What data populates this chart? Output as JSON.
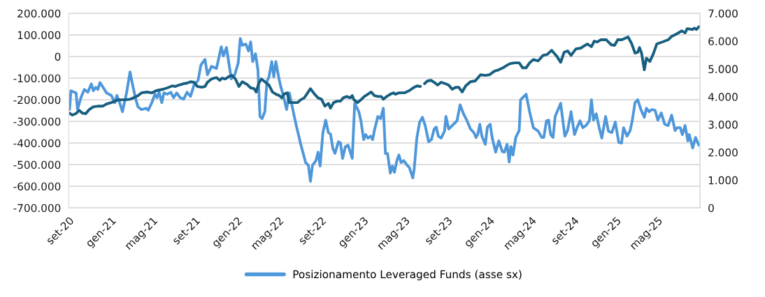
{
  "chart_data": {
    "type": "line",
    "xlim": [
      "2020-09-01",
      "2025-09-01"
    ],
    "xticks": [
      {
        "value": "2020-09-01",
        "label": "set-20"
      },
      {
        "value": "2021-01-01",
        "label": "gen-21"
      },
      {
        "value": "2021-05-01",
        "label": "mag-21"
      },
      {
        "value": "2021-09-01",
        "label": "set-21"
      },
      {
        "value": "2022-01-01",
        "label": "gen-22"
      },
      {
        "value": "2022-05-01",
        "label": "mag-22"
      },
      {
        "value": "2022-09-01",
        "label": "set-22"
      },
      {
        "value": "2023-01-01",
        "label": "gen-23"
      },
      {
        "value": "2023-05-01",
        "label": "mag-23"
      },
      {
        "value": "2023-09-01",
        "label": "set-23"
      },
      {
        "value": "2024-01-01",
        "label": "gen-24"
      },
      {
        "value": "2024-05-01",
        "label": "mag-24"
      },
      {
        "value": "2024-09-01",
        "label": "set-24"
      },
      {
        "value": "2025-01-01",
        "label": "gen-25"
      },
      {
        "value": "2025-05-01",
        "label": "mag-25"
      }
    ],
    "ylim": [
      -700000,
      200000
    ],
    "yticks": [
      {
        "value": -700000,
        "label": "-700.000"
      },
      {
        "value": -600000,
        "label": "-600.000"
      },
      {
        "value": -500000,
        "label": "-500.000"
      },
      {
        "value": -400000,
        "label": "-400.000"
      },
      {
        "value": -300000,
        "label": "-300.000"
      },
      {
        "value": -200000,
        "label": "-200.000"
      },
      {
        "value": -100000,
        "label": "-100.000"
      },
      {
        "value": 0,
        "label": "0"
      },
      {
        "value": 100000,
        "label": "100.000"
      },
      {
        "value": 200000,
        "label": "200.000"
      }
    ],
    "y2lim": [
      0,
      7000
    ],
    "y2ticks": [
      0,
      {
        "value": 1000,
        "label": "1.000"
      },
      {
        "value": 2000,
        "label": "2.000"
      },
      {
        "value": 3000,
        "label": "3.000"
      },
      {
        "value": 4000,
        "label": "4.000"
      },
      {
        "value": 5000,
        "label": "5.000"
      },
      {
        "value": 6000,
        "label": "6.000"
      },
      {
        "value": 7000,
        "label": "7.000"
      }
    ],
    "grid": "y",
    "legend": "bottom",
    "marker": "none",
    "line_style": "solid",
    "series": [
      {
        "name": "Posizionamento Leveraged Funds (asse sx)",
        "color": "#4e97da",
        "axis": "y",
        "x": [
          "2020-09-03",
          "2020-09-07",
          "2020-09-17",
          "2020-09-22",
          "2020-09-26",
          "2020-10-06",
          "2020-10-16",
          "2020-10-26",
          "2020-11-05",
          "2020-11-11",
          "2020-11-18",
          "2020-11-24",
          "2020-11-30",
          "2020-12-09",
          "2020-12-19",
          "2021-01-02",
          "2021-01-12",
          "2021-01-18",
          "2021-01-26",
          "2021-02-03",
          "2021-02-15",
          "2021-02-25",
          "2021-03-05",
          "2021-03-14",
          "2021-03-20",
          "2021-03-30",
          "2021-04-13",
          "2021-04-19",
          "2021-04-29",
          "2021-05-08",
          "2021-05-14",
          "2021-05-20",
          "2021-05-28",
          "2021-06-03",
          "2021-06-13",
          "2021-06-23",
          "2021-07-01",
          "2021-07-10",
          "2021-07-20",
          "2021-07-30",
          "2021-08-09",
          "2021-08-19",
          "2021-08-29",
          "2021-09-10",
          "2021-09-18",
          "2021-09-30",
          "2021-10-07",
          "2021-10-19",
          "2021-11-02",
          "2021-11-16",
          "2021-11-22",
          "2021-12-01",
          "2021-12-15",
          "2021-12-25",
          "2022-01-04",
          "2022-01-10",
          "2022-01-16",
          "2022-01-26",
          "2022-02-03",
          "2022-02-09",
          "2022-02-15",
          "2022-02-23",
          "2022-03-02",
          "2022-03-08",
          "2022-03-14",
          "2022-03-22",
          "2022-03-28",
          "2022-04-03",
          "2022-04-11",
          "2022-04-17",
          "2022-04-23",
          "2022-05-01",
          "2022-05-06",
          "2022-05-16",
          "2022-05-24",
          "2022-06-01",
          "2022-06-11",
          "2022-06-21",
          "2022-07-04",
          "2022-07-18",
          "2022-07-26",
          "2022-08-01",
          "2022-08-07",
          "2022-08-17",
          "2022-08-23",
          "2022-08-29",
          "2022-09-06",
          "2022-09-14",
          "2022-09-22",
          "2022-09-28",
          "2022-10-05",
          "2022-10-11",
          "2022-10-21",
          "2022-10-27",
          "2022-11-02",
          "2022-11-10",
          "2022-11-18",
          "2022-11-30",
          "2022-12-07",
          "2022-12-19",
          "2022-12-25",
          "2023-01-02",
          "2023-01-08",
          "2023-01-14",
          "2023-01-22",
          "2023-01-28",
          "2023-02-02",
          "2023-02-12",
          "2023-02-20",
          "2023-02-28",
          "2023-03-06",
          "2023-03-12",
          "2023-03-20",
          "2023-03-26",
          "2023-04-01",
          "2023-04-08",
          "2023-04-14",
          "2023-04-20",
          "2023-04-28",
          "2023-05-08",
          "2023-05-14",
          "2023-05-24",
          "2023-05-28",
          "2023-06-05",
          "2023-06-13",
          "2023-06-21",
          "2023-06-29",
          "2023-07-09",
          "2023-07-17",
          "2023-07-25",
          "2023-07-31",
          "2023-08-06",
          "2023-08-14",
          "2023-08-24",
          "2023-08-28",
          "2023-09-05",
          "2023-09-15",
          "2023-09-29",
          "2023-10-08",
          "2023-10-18",
          "2023-10-28",
          "2023-11-07",
          "2023-11-17",
          "2023-11-23",
          "2023-11-28",
          "2023-12-04",
          "2023-12-10",
          "2023-12-20",
          "2023-12-26",
          "2024-01-03",
          "2024-01-09",
          "2024-01-19",
          "2024-01-28",
          "2024-02-07",
          "2024-02-13",
          "2024-02-21",
          "2024-02-27",
          "2024-03-03",
          "2024-03-09",
          "2024-03-17",
          "2024-03-27",
          "2024-03-31",
          "2024-04-06",
          "2024-04-16",
          "2024-04-26",
          "2024-05-07",
          "2024-05-21",
          "2024-05-31",
          "2024-06-06",
          "2024-06-14",
          "2024-06-20",
          "2024-06-26",
          "2024-07-03",
          "2024-07-09",
          "2024-07-25",
          "2024-08-06",
          "2024-08-14",
          "2024-08-24",
          "2024-09-03",
          "2024-09-11",
          "2024-09-19",
          "2024-09-27",
          "2024-10-06",
          "2024-10-16",
          "2024-10-22",
          "2024-10-28",
          "2024-11-05",
          "2024-11-13",
          "2024-11-21",
          "2024-12-02",
          "2024-12-10",
          "2024-12-20",
          "2024-12-30",
          "2025-01-09",
          "2025-01-17",
          "2025-01-23",
          "2025-02-02",
          "2025-02-11",
          "2025-02-17",
          "2025-02-25",
          "2025-03-05",
          "2025-03-14",
          "2025-03-24",
          "2025-03-30",
          "2025-04-07",
          "2025-04-14",
          "2025-04-24",
          "2025-05-02",
          "2025-05-12",
          "2025-05-22",
          "2025-06-01",
          "2025-06-11",
          "2025-06-21",
          "2025-06-27",
          "2025-07-06",
          "2025-07-12",
          "2025-07-20",
          "2025-07-28",
          "2025-08-01",
          "2025-08-11",
          "2025-08-19",
          "2025-08-29"
        ],
        "values": [
          -245000,
          -158000,
          -165000,
          -168000,
          -245000,
          -190000,
          -152000,
          -165000,
          -126000,
          -158000,
          -142000,
          -152000,
          -120000,
          -142000,
          -168000,
          -180000,
          -213000,
          -180000,
          -213000,
          -255000,
          -168000,
          -71000,
          -135000,
          -200000,
          -232000,
          -245000,
          -239000,
          -248000,
          -213000,
          -174000,
          -190000,
          -165000,
          -213000,
          -168000,
          -174000,
          -165000,
          -190000,
          -168000,
          -190000,
          -197000,
          -165000,
          -184000,
          -132000,
          -110000,
          -39000,
          -13000,
          -84000,
          -45000,
          -55000,
          45000,
          3000,
          42000,
          -103000,
          -84000,
          -29000,
          84000,
          52000,
          58000,
          26000,
          68000,
          -23000,
          13000,
          -61000,
          -277000,
          -287000,
          -255000,
          -116000,
          -94000,
          -23000,
          -94000,
          -23000,
          -94000,
          -132000,
          -190000,
          -245000,
          -168000,
          -245000,
          -319000,
          -406000,
          -490000,
          -503000,
          -577000,
          -503000,
          -481000,
          -442000,
          -506000,
          -352000,
          -294000,
          -352000,
          -358000,
          -426000,
          -448000,
          -394000,
          -400000,
          -471000,
          -416000,
          -410000,
          -471000,
          -216000,
          -255000,
          -297000,
          -384000,
          -361000,
          -377000,
          -368000,
          -384000,
          -342000,
          -277000,
          -287000,
          -239000,
          -448000,
          -448000,
          -539000,
          -506000,
          -535000,
          -481000,
          -455000,
          -490000,
          -481000,
          -503000,
          -513000,
          -561000,
          -523000,
          -374000,
          -303000,
          -281000,
          -319000,
          -394000,
          -384000,
          -335000,
          -326000,
          -368000,
          -377000,
          -345000,
          -277000,
          -335000,
          -319000,
          -297000,
          -223000,
          -265000,
          -297000,
          -335000,
          -352000,
          -374000,
          -361000,
          -313000,
          -368000,
          -406000,
          -326000,
          -313000,
          -377000,
          -442000,
          -390000,
          -439000,
          -442000,
          -406000,
          -487000,
          -416000,
          -455000,
          -374000,
          -342000,
          -200000,
          -190000,
          -174000,
          -255000,
          -329000,
          -345000,
          -374000,
          -374000,
          -297000,
          -294000,
          -361000,
          -374000,
          -277000,
          -216000,
          -368000,
          -342000,
          -255000,
          -361000,
          -326000,
          -297000,
          -329000,
          -319000,
          -297000,
          -200000,
          -294000,
          -265000,
          -326000,
          -377000,
          -277000,
          -345000,
          -352000,
          -303000,
          -397000,
          -400000,
          -329000,
          -368000,
          -342000,
          -297000,
          -213000,
          -200000,
          -245000,
          -281000,
          -239000,
          -255000,
          -245000,
          -248000,
          -294000,
          -261000,
          -313000,
          -319000,
          -271000,
          -342000,
          -329000,
          -329000,
          -361000,
          -319000,
          -390000,
          -361000,
          -423000,
          -374000,
          -410000
        ]
      },
      {
        "color": "#175f80",
        "axis": "y2",
        "x": [
          "2020-09-03",
          "2020-09-11",
          "2020-09-21",
          "2020-10-01",
          "2020-10-10",
          "2020-10-20",
          "2020-10-30",
          "2020-11-11",
          "2020-11-24",
          "2020-12-08",
          "2020-12-19",
          "2021-01-02",
          "2021-01-22",
          "2021-02-11",
          "2021-02-25",
          "2021-03-07",
          "2021-03-20",
          "2021-03-30",
          "2021-04-15",
          "2021-04-29",
          "2021-05-12",
          "2021-06-01",
          "2021-06-13",
          "2021-06-27",
          "2021-07-06",
          "2021-07-16",
          "2021-07-30",
          "2021-08-09",
          "2021-08-19",
          "2021-08-29",
          "2021-09-08",
          "2021-09-20",
          "2021-09-30",
          "2021-10-07",
          "2021-10-19",
          "2021-11-02",
          "2021-11-12",
          "2021-11-18",
          "2021-11-28",
          "2021-12-07",
          "2021-12-17",
          "2021-12-27",
          "2022-01-06",
          "2022-01-16",
          "2022-01-30",
          "2022-02-09",
          "2022-02-19",
          "2022-02-25",
          "2022-03-04",
          "2022-03-12",
          "2022-03-22",
          "2022-04-03",
          "2022-04-13",
          "2022-04-23",
          "2022-05-03",
          "2022-05-10",
          "2022-05-16",
          "2022-05-26",
          "2022-06-01",
          "2022-06-11",
          "2022-06-25",
          "2022-07-04",
          "2022-07-14",
          "2022-07-24",
          "2022-08-01",
          "2022-08-13",
          "2022-08-23",
          "2022-09-02",
          "2022-09-12",
          "2022-09-22",
          "2022-09-28",
          "2022-10-07",
          "2022-10-17",
          "2022-10-27",
          "2022-11-04",
          "2022-11-14",
          "2022-11-24",
          "2022-11-30",
          "2022-12-05",
          "2022-12-15",
          "2022-12-25",
          "2023-01-04",
          "2023-01-14",
          "2023-01-24",
          "2023-02-02",
          "2023-02-12",
          "2023-02-22",
          "2023-02-28",
          "2023-03-10",
          "2023-03-20",
          "2023-03-30",
          "2023-04-04",
          "2023-04-14",
          "2023-04-30",
          "2023-05-14",
          "2023-05-28",
          "2023-06-05",
          "2023-06-15",
          "2023-06-22",
          "2023-06-27",
          "2023-07-06",
          "2023-07-16",
          "2023-07-25",
          "2023-08-04",
          "2023-08-14",
          "2023-08-26",
          "2023-09-05",
          "2023-09-15",
          "2023-09-25",
          "2023-10-04",
          "2023-10-14",
          "2023-10-24",
          "2023-11-07",
          "2023-11-21",
          "2023-12-06",
          "2023-12-20",
          "2024-01-01",
          "2024-01-15",
          "2024-01-28",
          "2024-02-09",
          "2024-02-19",
          "2024-02-29",
          "2024-03-13",
          "2024-03-27",
          "2024-04-06",
          "2024-04-16",
          "2024-04-26",
          "2024-05-07",
          "2024-05-21",
          "2024-06-04",
          "2024-06-16",
          "2024-06-29",
          "2024-07-13",
          "2024-07-25",
          "2024-08-04",
          "2024-08-14",
          "2024-08-24",
          "2024-09-07",
          "2024-09-21",
          "2024-09-30",
          "2024-10-10",
          "2024-10-22",
          "2024-10-30",
          "2024-11-08",
          "2024-11-18",
          "2024-12-04",
          "2024-12-18",
          "2024-12-28",
          "2025-01-06",
          "2025-01-18",
          "2025-02-05",
          "2025-02-15",
          "2025-02-25",
          "2025-03-05",
          "2025-03-10",
          "2025-03-16",
          "2025-03-24",
          "2025-03-30",
          "2025-04-09",
          "2025-04-19",
          "2025-04-29",
          "2025-05-15",
          "2025-06-01",
          "2025-06-11",
          "2025-06-27",
          "2025-07-10",
          "2025-07-20",
          "2025-07-26",
          "2025-08-10",
          "2025-08-16",
          "2025-08-22",
          "2025-08-29"
        ],
        "values": [
          3410,
          3340,
          3390,
          3510,
          3410,
          3390,
          3540,
          3640,
          3660,
          3660,
          3740,
          3790,
          3890,
          3890,
          3910,
          3960,
          4040,
          4140,
          4170,
          4140,
          4220,
          4270,
          4320,
          4390,
          4370,
          4420,
          4470,
          4490,
          4540,
          4520,
          4370,
          4340,
          4370,
          4520,
          4640,
          4690,
          4590,
          4670,
          4640,
          4720,
          4770,
          4640,
          4370,
          4540,
          4440,
          4320,
          4290,
          4170,
          4470,
          4640,
          4540,
          4420,
          4170,
          4090,
          4040,
          3960,
          4090,
          4140,
          3790,
          3790,
          3790,
          3890,
          3960,
          4140,
          4290,
          4090,
          3960,
          3910,
          3660,
          3760,
          3590,
          3790,
          3840,
          3840,
          3960,
          4010,
          3960,
          4040,
          3890,
          3790,
          3890,
          4010,
          4090,
          4170,
          4040,
          4010,
          4010,
          3910,
          4010,
          4090,
          4140,
          4090,
          4140,
          4140,
          4220,
          4340,
          4390,
          4370,
          null,
          4470,
          4570,
          4590,
          4520,
          4420,
          4520,
          4470,
          4420,
          4270,
          4340,
          4340,
          4170,
          4390,
          4540,
          4570,
          4790,
          4770,
          4790,
          4920,
          4970,
          5040,
          5120,
          5190,
          5220,
          5220,
          5040,
          5040,
          5220,
          5340,
          5290,
          5490,
          5520,
          5670,
          5470,
          5240,
          5600,
          5650,
          5490,
          5720,
          5750,
          5820,
          5900,
          5800,
          6000,
          5970,
          6050,
          6050,
          5870,
          5850,
          6050,
          6050,
          6150,
          5920,
          5570,
          5600,
          5770,
          5570,
          4970,
          5390,
          5270,
          5540,
          5900,
          5970,
          6050,
          6170,
          6270,
          6370,
          6300,
          6450,
          6420,
          6470,
          6420,
          6520
        ]
      }
    ]
  }
}
